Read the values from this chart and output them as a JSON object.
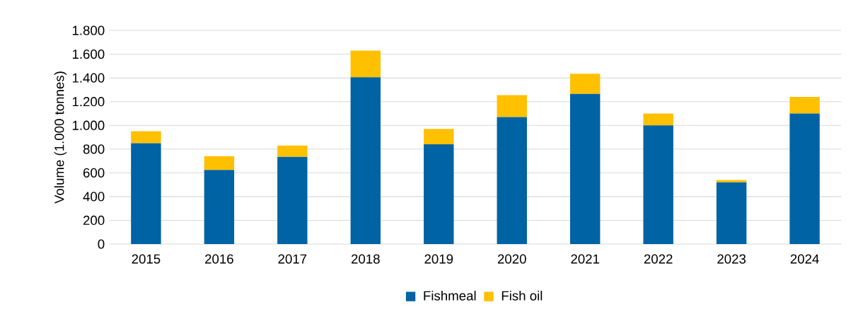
{
  "chart_data": {
    "type": "bar",
    "stacked": true,
    "ylabel": "Volume (1.000 tonnes)",
    "categories": [
      "2015",
      "2016",
      "2017",
      "2018",
      "2019",
      "2020",
      "2021",
      "2022",
      "2023",
      "2024"
    ],
    "series": [
      {
        "name": "Fishmeal",
        "color": "#0063a3",
        "values": [
          850,
          625,
          735,
          1405,
          840,
          1070,
          1265,
          1000,
          520,
          1100
        ]
      },
      {
        "name": "Fish oil",
        "color": "#ffc000",
        "values": [
          100,
          115,
          95,
          225,
          130,
          185,
          170,
          100,
          20,
          140
        ]
      }
    ],
    "ylim": [
      0,
      1800
    ],
    "yticks": [
      0,
      200,
      400,
      600,
      800,
      {
        "value": 1000,
        "label": "1.000"
      },
      {
        "value": 1200,
        "label": "1.200"
      },
      {
        "value": 1400,
        "label": "1.400"
      },
      {
        "value": 1600,
        "label": "1.600"
      },
      {
        "value": 1800,
        "label": "1.800"
      }
    ],
    "grid": "y",
    "legend": "bottom"
  }
}
